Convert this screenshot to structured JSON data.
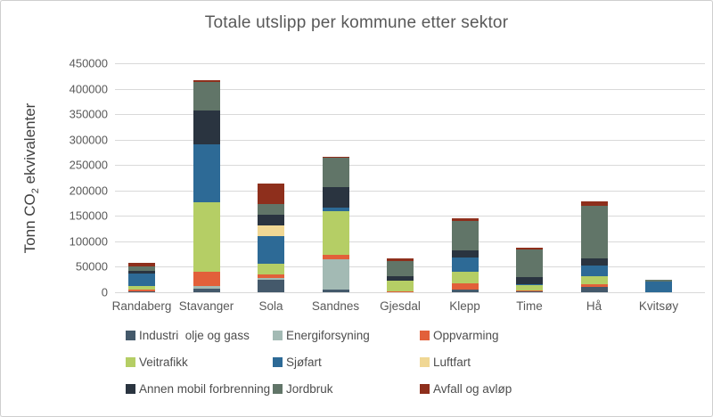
{
  "window": {
    "background": "#ffffff",
    "border_color": "#cfcfcf"
  },
  "colors": {
    "title_text": "#595959",
    "axis_text": "#595959",
    "ylabel_text": "#404040",
    "legend_text": "#4d4d4d",
    "gridline": "#d9d9d9"
  },
  "chart_data": {
    "type": "bar",
    "stacked": true,
    "grid": true,
    "legend_position": "bottom",
    "title": "Totale utslipp per kommune etter sektor",
    "ylabel": "Tonn CO2 ekvivalenter",
    "ylabel_pre": "Tonn CO",
    "ylabel_sub": "2",
    "ylabel_post": " ekvivalenter",
    "xlabel": "",
    "ylim": [
      0,
      450000
    ],
    "ytick_step": 50000,
    "yticks": [
      0,
      50000,
      100000,
      150000,
      200000,
      250000,
      300000,
      350000,
      400000,
      450000
    ],
    "categories": [
      "Randaberg",
      "Stavanger",
      "Sola",
      "Sandnes",
      "Gjesdal",
      "Klepp",
      "Time",
      "Hå",
      "Kvitsøy"
    ],
    "series": [
      {
        "name": "Industri  olje og gass",
        "color": "#44596b",
        "values": [
          1000,
          7000,
          25000,
          5000,
          0,
          5000,
          1000,
          11000,
          0
        ]
      },
      {
        "name": "Energiforsyning",
        "color": "#a3bab4",
        "values": [
          0,
          6000,
          3000,
          60000,
          0,
          0,
          0,
          0,
          0
        ]
      },
      {
        "name": "Oppvarming",
        "color": "#e2603a",
        "values": [
          4000,
          27000,
          7000,
          9000,
          2000,
          12000,
          2000,
          5000,
          0
        ]
      },
      {
        "name": "Veitrafikk",
        "color": "#b5ce65",
        "values": [
          8000,
          137000,
          21000,
          86000,
          21000,
          23000,
          12000,
          16000,
          0
        ]
      },
      {
        "name": "Sjøfart",
        "color": "#2d6a96",
        "values": [
          24000,
          114000,
          54000,
          7000,
          0,
          29000,
          1000,
          21000,
          21000
        ]
      },
      {
        "name": "Luftfart",
        "color": "#f0d794",
        "values": [
          0,
          0,
          21000,
          0,
          0,
          0,
          0,
          0,
          0
        ]
      },
      {
        "name": "Annen mobil forbrenning",
        "color": "#2a3440",
        "values": [
          5000,
          66000,
          21000,
          39000,
          9000,
          13000,
          13000,
          13000,
          0
        ]
      },
      {
        "name": "Jordbruk",
        "color": "#617568",
        "values": [
          8000,
          56000,
          21000,
          59000,
          30000,
          58000,
          55000,
          104000,
          3000
        ]
      },
      {
        "name": "Avfall og avløp",
        "color": "#8e2f1c",
        "values": [
          7000,
          3000,
          41000,
          2000,
          4000,
          6000,
          3000,
          8000,
          0
        ]
      }
    ]
  }
}
